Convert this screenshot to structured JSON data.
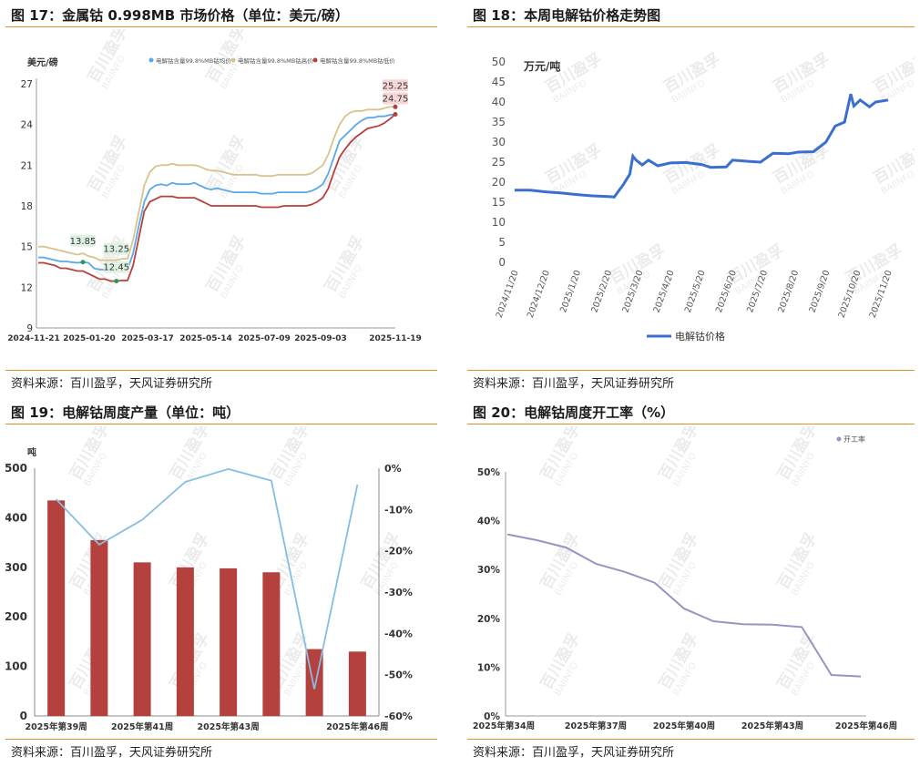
{
  "panels": {
    "p17": {
      "title": "图 17：金属钴 0.998MB 市场价格（单位：美元/磅）",
      "source": "资料来源：百川盈孚，天风证券研究所"
    },
    "p18": {
      "title": "图 18：本周电解钴价格走势图",
      "source": "资料来源：百川盈孚，天风证券研究所"
    },
    "p19": {
      "title": "图 19：电解钴周度产量（单位：吨）",
      "source": "资料来源：百川盈孚，天风证券研究所"
    },
    "p20": {
      "title": "图 20：电解钴周度开工率（%）",
      "source": "资料来源：百川盈孚，天风证券研究所"
    }
  },
  "watermark": {
    "cn": "百川盈孚",
    "en": "BAIINFO"
  },
  "chart_data": [
    {
      "id": "c17",
      "type": "line",
      "unit_label": "美元/磅",
      "ylim": [
        9,
        27
      ],
      "yticks": [
        9,
        12,
        15,
        18,
        21,
        24,
        27
      ],
      "xticks": [
        "2024-11-21",
        "2025-01-20",
        "2025-03-17",
        "2025-05-14",
        "2025-07-09",
        "2025-09-03",
        "2025-11-19"
      ],
      "series": [
        {
          "name": "电解钴含量99.8%MB钴均价",
          "color": "#5aa9e6",
          "values": [
            14.2,
            14.2,
            14.1,
            14.0,
            13.9,
            13.9,
            13.85,
            13.8,
            13.85,
            13.8,
            13.4,
            13.3,
            13.3,
            13.25,
            13.25,
            13.3,
            13.3,
            14.5,
            16.5,
            18.3,
            19.2,
            19.5,
            19.6,
            19.5,
            19.7,
            19.6,
            19.6,
            19.6,
            19.7,
            19.5,
            19.3,
            19.2,
            19.3,
            19.2,
            19.1,
            19.0,
            19.0,
            19.0,
            19.0,
            19.0,
            18.9,
            18.9,
            18.9,
            19.0,
            19.0,
            19.0,
            19.0,
            19.0,
            19.0,
            19.1,
            19.3,
            19.6,
            20.4,
            21.6,
            22.8,
            23.2,
            23.6,
            24.0,
            24.3,
            24.5,
            24.5,
            24.6,
            24.6,
            24.7,
            24.75
          ]
        },
        {
          "name": "电解钴含量99.8%MB钴高价",
          "color": "#d8c38e",
          "values": [
            15.0,
            15.0,
            14.9,
            14.8,
            14.7,
            14.6,
            14.5,
            14.4,
            14.5,
            14.3,
            14.2,
            14.0,
            14.0,
            14.0,
            14.0,
            14.1,
            14.1,
            15.5,
            17.5,
            19.5,
            20.5,
            20.9,
            21.0,
            21.0,
            21.1,
            21.0,
            21.0,
            21.0,
            21.0,
            20.9,
            20.7,
            20.6,
            20.6,
            20.5,
            20.4,
            20.3,
            20.3,
            20.3,
            20.3,
            20.3,
            20.2,
            20.2,
            20.2,
            20.3,
            20.3,
            20.3,
            20.3,
            20.3,
            20.3,
            20.4,
            20.7,
            21.0,
            21.8,
            23.0,
            24.0,
            24.6,
            24.9,
            25.0,
            25.0,
            25.1,
            25.1,
            25.1,
            25.2,
            25.3,
            25.3
          ]
        },
        {
          "name": "电解钴含量99.8%MB钴低价",
          "color": "#b5413e",
          "values": [
            13.8,
            13.8,
            13.7,
            13.6,
            13.4,
            13.4,
            13.3,
            13.2,
            13.2,
            13.0,
            12.8,
            12.6,
            12.6,
            12.45,
            12.45,
            12.5,
            12.5,
            13.6,
            15.6,
            17.6,
            18.3,
            18.5,
            18.7,
            18.7,
            18.7,
            18.6,
            18.6,
            18.6,
            18.6,
            18.4,
            18.2,
            18.0,
            18.0,
            18.0,
            18.0,
            18.0,
            18.0,
            18.0,
            18.0,
            18.0,
            17.9,
            17.9,
            17.9,
            17.9,
            18.0,
            18.0,
            18.0,
            18.0,
            18.0,
            18.1,
            18.3,
            18.6,
            19.3,
            20.5,
            21.6,
            22.2,
            22.7,
            23.1,
            23.4,
            23.7,
            23.8,
            23.9,
            24.1,
            24.4,
            24.75
          ]
        }
      ],
      "annotations": [
        {
          "label": "13.85",
          "series": 0,
          "index": 8,
          "color": "#2c9a4a"
        },
        {
          "label": "13.25",
          "series": 0,
          "index": 14,
          "color": "#2c9a4a"
        },
        {
          "label": "12.45",
          "series": 2,
          "index": 14,
          "color": "#2c9a4a"
        },
        {
          "label": "25.25",
          "series": 1,
          "index": 64,
          "color": "#b5413e"
        },
        {
          "label": "24.75",
          "series": 0,
          "index": 64,
          "color": "#b5413e"
        }
      ]
    },
    {
      "id": "c18",
      "type": "line",
      "unit_label": "万元/吨",
      "ylim": [
        0,
        50
      ],
      "yticks": [
        0,
        5,
        10,
        15,
        20,
        25,
        30,
        35,
        40,
        45,
        50
      ],
      "xticks": [
        "2024/11/20",
        "2024/12/20",
        "2025/1/20",
        "2025/2/20",
        "2025/3/20",
        "2025/4/20",
        "2025/5/20",
        "2025/6/20",
        "2025/7/20",
        "2025/8/20",
        "2025/9/20",
        "2025/10/20",
        "2025/11/20"
      ],
      "series": [
        {
          "name": "电解钴价格",
          "color": "#3a6fcf",
          "points": [
            [
              0,
              18.0
            ],
            [
              0.5,
              18.0
            ],
            [
              1,
              17.6
            ],
            [
              1.5,
              17.3
            ],
            [
              2,
              16.9
            ],
            [
              2.5,
              16.6
            ],
            [
              3,
              16.4
            ],
            [
              3.2,
              16.3
            ],
            [
              3.5,
              19.5
            ],
            [
              3.7,
              22.0
            ],
            [
              3.8,
              26.5
            ],
            [
              3.9,
              25.5
            ],
            [
              4.1,
              24.3
            ],
            [
              4.3,
              25.5
            ],
            [
              4.6,
              24.1
            ],
            [
              5,
              24.8
            ],
            [
              5.5,
              24.9
            ],
            [
              6,
              24.4
            ],
            [
              6.3,
              23.7
            ],
            [
              6.8,
              23.8
            ],
            [
              7,
              25.5
            ],
            [
              7.5,
              25.2
            ],
            [
              7.9,
              25.0
            ],
            [
              8.3,
              27.2
            ],
            [
              8.8,
              27.1
            ],
            [
              9.1,
              27.5
            ],
            [
              9.6,
              27.6
            ],
            [
              10.0,
              30.0
            ],
            [
              10.3,
              34.0
            ],
            [
              10.6,
              35.0
            ],
            [
              10.8,
              42.0
            ],
            [
              10.9,
              39.0
            ],
            [
              11.1,
              40.5
            ],
            [
              11.4,
              38.8
            ],
            [
              11.6,
              40.0
            ],
            [
              12.0,
              40.5
            ]
          ]
        }
      ]
    },
    {
      "id": "c19",
      "type": "bar",
      "unit_label": "吨",
      "categories": [
        "2025年第39周",
        "2025年第40周",
        "2025年第41周",
        "2025年第42周",
        "2025年第43周",
        "2025年第44周",
        "2025年第45周",
        "2025年第46周"
      ],
      "xtick_labels": [
        "2025年第39周",
        "",
        "2025年第41周",
        "",
        "2025年第43周",
        "",
        "",
        "2025年第46周"
      ],
      "ylim": [
        0,
        500
      ],
      "yticks": [
        0,
        100,
        200,
        300,
        400,
        500
      ],
      "y2lim": [
        -60,
        0
      ],
      "y2ticks": [
        "-60%",
        "-50%",
        "-40%",
        "-30%",
        "-20%",
        "-10%",
        "0%"
      ],
      "series": [
        {
          "name": "",
          "color": "#b5413e",
          "axis": "left",
          "values": [
            435,
            355,
            310,
            300,
            298,
            290,
            135,
            130
          ]
        },
        {
          "name": "",
          "color": "#86bde3",
          "axis": "right",
          "values": [
            -7.5,
            -18.5,
            -12.5,
            -3.3,
            -0.2,
            -3.0,
            -53.5,
            -4.0
          ]
        }
      ]
    },
    {
      "id": "c20",
      "type": "line",
      "legend": "开工率",
      "ylim": [
        0,
        50
      ],
      "yticks": [
        "0%",
        "10%",
        "20%",
        "30%",
        "40%",
        "50%"
      ],
      "categories": [
        "2025年第34周",
        "2025年第35周",
        "2025年第36周",
        "2025年第37周",
        "2025年第38周",
        "2025年第39周",
        "2025年第40周",
        "2025年第41周",
        "2025年第42周",
        "2025年第43周",
        "2025年第44周",
        "2025年第45周",
        "2025年第46周"
      ],
      "xtick_labels": [
        "2025年第34周",
        "",
        "",
        "2025年第37周",
        "",
        "",
        "2025年第40周",
        "",
        "",
        "2025年第43周",
        "",
        "",
        "2025年第46周"
      ],
      "series": [
        {
          "name": "开工率",
          "color": "#9b93c2",
          "values": [
            37.2,
            36.0,
            34.5,
            31.2,
            29.5,
            27.3,
            22.0,
            19.4,
            18.8,
            18.7,
            18.2,
            8.4,
            8.1
          ]
        }
      ]
    }
  ]
}
